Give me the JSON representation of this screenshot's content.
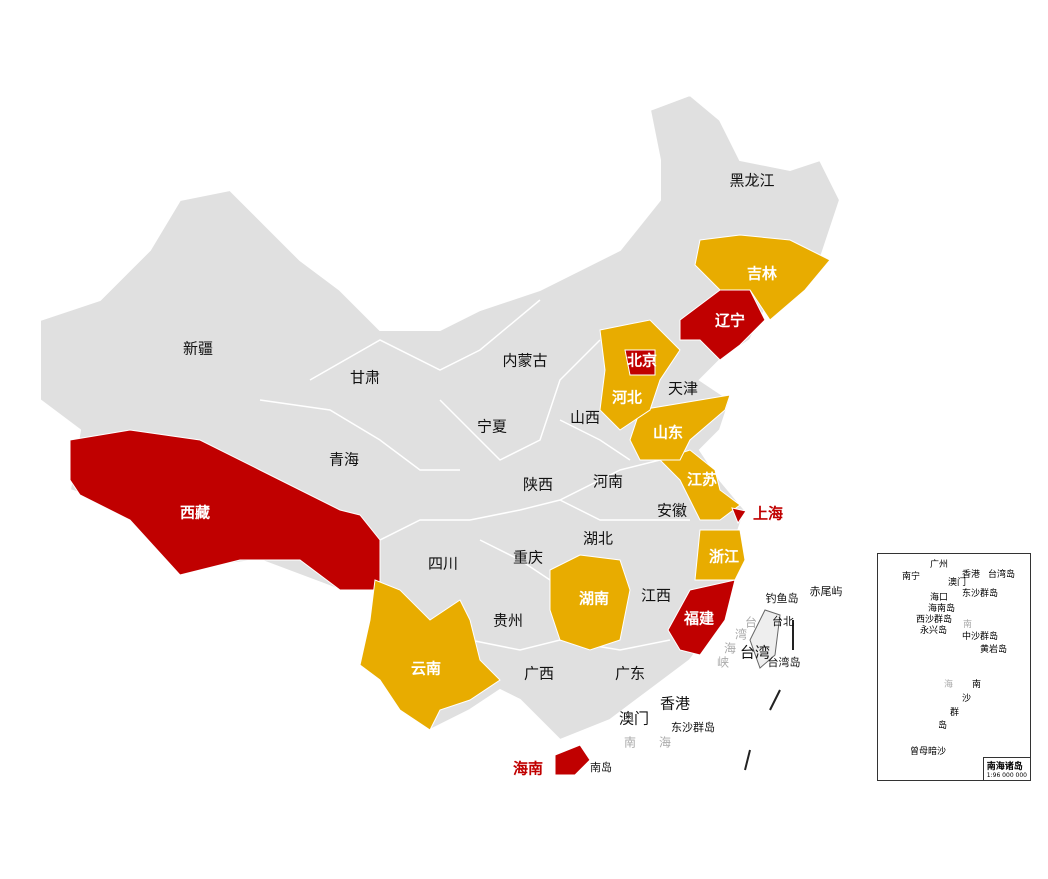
{
  "colors": {
    "base": "#e0e0e0",
    "border": "#ffffff",
    "red": "#c00000",
    "gold": "#e8ac00"
  },
  "provinces": {
    "heilongjiang": "黑龙江",
    "jilin": "吉林",
    "liaoning": "辽宁",
    "neimenggu": "内蒙古",
    "beijing": "北京",
    "tianjin": "天津",
    "hebei": "河北",
    "shanxi": "山西",
    "shandong": "山东",
    "xinjiang": "新疆",
    "gansu": "甘肃",
    "ningxia": "宁夏",
    "qinghai": "青海",
    "shaanxi": "陕西",
    "henan": "河南",
    "jiangsu": "江苏",
    "shanghai": "上海",
    "anhui": "安徽",
    "xizang": "西藏",
    "sichuan": "四川",
    "chongqing": "重庆",
    "hubei": "湖北",
    "zhejiang": "浙江",
    "hunan": "湖南",
    "jiangxi": "江西",
    "fujian": "福建",
    "guizhou": "贵州",
    "yunnan": "云南",
    "guangxi": "广西",
    "guangdong": "广东",
    "xianggang": "香港",
    "aomen": "澳门",
    "hainan": "海南",
    "taiwan": "台湾"
  },
  "highlight": {
    "red": [
      "北京",
      "辽宁",
      "上海",
      "西藏",
      "福建",
      "海南"
    ],
    "gold": [
      "吉林",
      "河北",
      "山东",
      "江苏",
      "浙江",
      "湖南",
      "云南"
    ]
  },
  "islands": {
    "diaoyu": "钓鱼岛",
    "chiwei": "赤尾屿",
    "taipei": "台北",
    "taiwan_island": "台湾岛",
    "dongsha": "东沙群岛",
    "nanhai1": "南",
    "nanhai2": "海",
    "hainan_dao": "南岛",
    "strait": [
      "台",
      "湾",
      "海",
      "峡"
    ]
  },
  "inset": {
    "title": "南海诸岛",
    "scale": "1:96 000 000",
    "labels": [
      "南宁",
      "广州",
      "香港",
      "澳门",
      "台湾岛",
      "海口",
      "东沙群岛",
      "海南岛",
      "西沙群岛",
      "永兴岛",
      "南",
      "中沙群岛",
      "黄岩岛",
      "海",
      "南",
      "沙",
      "群",
      "岛",
      "曾母暗沙"
    ]
  }
}
